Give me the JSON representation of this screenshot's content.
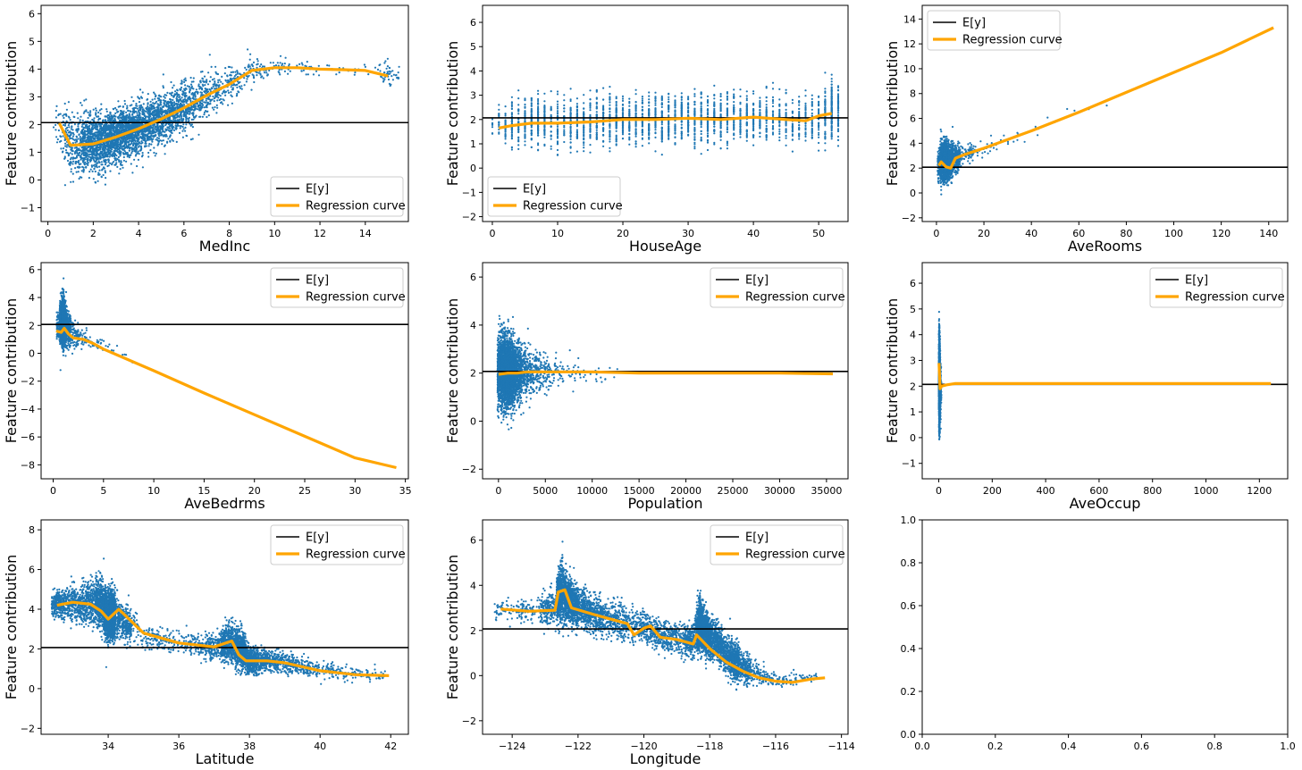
{
  "figure": {
    "colors": {
      "points": "#1f77b4",
      "baseline": "#000000",
      "curve": "#ffa500",
      "frame": "#000000",
      "legend_edge": "#cccccc"
    },
    "ylabel": "Feature contribution",
    "legend": {
      "baseline_label": "E[y]",
      "curve_label": "Regression curve"
    }
  },
  "chart_data": [
    {
      "type": "scatter",
      "feature": "MedInc",
      "xlabel": "MedInc",
      "ylabel": "Feature contribution",
      "xlim": [
        -0.3,
        15.9
      ],
      "ylim": [
        -1.5,
        6.3
      ],
      "xticks": [
        0,
        2,
        4,
        6,
        8,
        10,
        12,
        14
      ],
      "yticks": [
        -1,
        0,
        1,
        2,
        3,
        4,
        5,
        6
      ],
      "baseline": 2.07,
      "legend_position": "lower right",
      "regression_curve": {
        "x": [
          0.5,
          1.0,
          2.0,
          3.0,
          4.0,
          5.0,
          6.0,
          7.0,
          8.0,
          9.0,
          10.0,
          11.0,
          12.0,
          13.0,
          14.0,
          15.0
        ],
        "y": [
          2.05,
          1.25,
          1.3,
          1.55,
          1.85,
          2.2,
          2.6,
          3.05,
          3.45,
          3.95,
          4.05,
          4.05,
          4.0,
          3.98,
          3.95,
          3.75
        ]
      },
      "cloud": {
        "x": [
          0.5,
          1.0,
          2.0,
          3.0,
          4.0,
          5.0,
          6.0,
          7.0,
          8.0,
          9.0,
          10.0,
          11.0,
          12.0,
          13.0,
          14.0,
          15.0
        ],
        "center": [
          2.05,
          1.25,
          1.3,
          1.55,
          1.85,
          2.2,
          2.6,
          3.05,
          3.45,
          3.95,
          4.05,
          4.05,
          4.0,
          3.98,
          3.95,
          3.75
        ],
        "spread": [
          0.9,
          1.0,
          0.9,
          0.85,
          0.8,
          0.8,
          0.8,
          0.7,
          0.55,
          0.45,
          0.35,
          0.3,
          0.25,
          0.2,
          0.25,
          0.5
        ],
        "density": [
          60,
          400,
          1300,
          1500,
          1300,
          1000,
          700,
          380,
          200,
          110,
          60,
          35,
          20,
          15,
          20,
          90
        ]
      }
    },
    {
      "type": "scatter",
      "feature": "HouseAge",
      "xlabel": "HouseAge",
      "ylabel": "Feature contribution",
      "xlim": [
        -1.5,
        54.5
      ],
      "ylim": [
        -2.2,
        6.7
      ],
      "xticks": [
        0,
        10,
        20,
        30,
        40,
        50
      ],
      "yticks": [
        -2,
        -1,
        0,
        1,
        2,
        3,
        4,
        5,
        6
      ],
      "baseline": 2.07,
      "legend_position": "lower left",
      "regression_curve": {
        "x": [
          1,
          3,
          6,
          10,
          15,
          20,
          25,
          30,
          35,
          40,
          45,
          48,
          50,
          52
        ],
        "y": [
          1.65,
          1.75,
          1.85,
          1.85,
          1.9,
          2.0,
          2.0,
          2.05,
          2.0,
          2.1,
          2.0,
          1.95,
          2.15,
          2.25
        ]
      },
      "cloud": {
        "x": [
          1,
          3,
          6,
          10,
          15,
          20,
          25,
          30,
          35,
          40,
          45,
          50,
          52
        ],
        "center": [
          1.8,
          1.8,
          1.9,
          1.9,
          1.9,
          2.0,
          2.0,
          2.05,
          2.0,
          2.1,
          2.0,
          2.1,
          2.3
        ],
        "spread": [
          0.6,
          0.8,
          0.9,
          0.9,
          0.9,
          0.9,
          0.9,
          0.9,
          0.9,
          0.9,
          0.9,
          0.9,
          1.0
        ],
        "density": [
          60,
          200,
          350,
          350,
          450,
          450,
          450,
          450,
          450,
          400,
          300,
          200,
          400
        ]
      }
    },
    {
      "type": "scatter",
      "feature": "AveRooms",
      "xlabel": "AveRooms",
      "ylabel": "Feature contribution",
      "xlim": [
        -6,
        148
      ],
      "ylim": [
        -2.3,
        15.1
      ],
      "xticks": [
        0,
        20,
        40,
        60,
        80,
        100,
        120,
        140
      ],
      "yticks": [
        -2,
        0,
        2,
        4,
        6,
        8,
        10,
        12,
        14
      ],
      "baseline": 2.07,
      "legend_position": "upper left",
      "regression_curve": {
        "x": [
          1,
          2,
          4,
          6,
          8,
          12,
          20,
          30,
          40,
          60,
          80,
          100,
          120,
          142
        ],
        "y": [
          2.2,
          2.5,
          2.1,
          2.0,
          2.8,
          3.1,
          3.6,
          4.3,
          5.0,
          6.5,
          8.1,
          9.7,
          11.3,
          13.3
        ]
      },
      "cloud": {
        "x": [
          1,
          2,
          4,
          6,
          8,
          12,
          20,
          30,
          40,
          60,
          80
        ],
        "center": [
          2.2,
          2.5,
          2.5,
          2.6,
          2.8,
          3.1,
          3.6,
          4.3,
          5.0,
          6.5,
          8.1
        ],
        "spread": [
          1.2,
          1.4,
          1.3,
          1.2,
          1.0,
          0.6,
          0.5,
          0.5,
          0.5,
          0.6,
          0.5
        ],
        "density": [
          150,
          800,
          1400,
          900,
          400,
          120,
          40,
          20,
          10,
          6,
          2
        ]
      }
    },
    {
      "type": "scatter",
      "feature": "AveBedrms",
      "xlabel": "AveBedrms",
      "ylabel": "Feature contribution",
      "xlim": [
        -1.2,
        35.3
      ],
      "ylim": [
        -9.0,
        6.5
      ],
      "xticks": [
        0,
        5,
        10,
        15,
        20,
        25,
        30,
        35
      ],
      "yticks": [
        -8,
        -6,
        -4,
        -2,
        0,
        2,
        4,
        6
      ],
      "baseline": 2.07,
      "legend_position": "upper right",
      "regression_curve": {
        "x": [
          0.3,
          0.8,
          1.1,
          1.5,
          2.0,
          3.0,
          4.0,
          5.0,
          10.0,
          15.0,
          20.0,
          25.0,
          30.0,
          34.1
        ],
        "y": [
          1.6,
          1.5,
          1.8,
          1.4,
          1.1,
          1.0,
          0.7,
          0.3,
          -1.25,
          -2.85,
          -4.4,
          -5.95,
          -7.5,
          -8.2
        ]
      },
      "cloud": {
        "x": [
          0.5,
          0.8,
          1.0,
          1.1,
          1.5,
          2.0,
          3.0,
          4.0,
          5.0,
          6.0,
          8.0
        ],
        "center": [
          2.0,
          2.3,
          2.3,
          2.2,
          1.8,
          1.4,
          1.0,
          0.8,
          0.5,
          0.3,
          -0.2
        ],
        "spread": [
          1.0,
          1.4,
          1.5,
          1.4,
          1.2,
          0.9,
          0.6,
          0.5,
          0.6,
          0.6,
          0.7
        ],
        "density": [
          150,
          900,
          1500,
          800,
          300,
          120,
          60,
          30,
          20,
          10,
          8
        ]
      }
    },
    {
      "type": "scatter",
      "feature": "Population",
      "xlabel": "Population",
      "ylabel": "Feature contribution",
      "xlim": [
        -1700,
        37300
      ],
      "ylim": [
        -2.4,
        6.6
      ],
      "xticks": [
        0,
        5000,
        10000,
        15000,
        20000,
        25000,
        30000,
        35000
      ],
      "yticks": [
        -2,
        0,
        2,
        4,
        6
      ],
      "baseline": 2.07,
      "legend_position": "upper right",
      "regression_curve": {
        "x": [
          3,
          1000,
          2000,
          3000,
          5000,
          7000,
          10000,
          15000,
          20000,
          25000,
          30000,
          35682
        ],
        "y": [
          1.95,
          2.0,
          2.0,
          2.05,
          2.05,
          2.05,
          2.05,
          2.0,
          2.0,
          2.0,
          2.0,
          1.97
        ]
      },
      "cloud": {
        "x": [
          100,
          500,
          1000,
          1500,
          2000,
          3000,
          4000,
          5000,
          6000,
          8000,
          10000,
          12000
        ],
        "center": [
          2.1,
          2.1,
          2.0,
          2.0,
          2.0,
          2.0,
          2.05,
          2.05,
          2.05,
          2.0,
          2.0,
          2.0
        ],
        "spread": [
          1.3,
          1.3,
          1.3,
          1.2,
          1.1,
          0.9,
          0.8,
          0.7,
          0.6,
          0.5,
          0.5,
          0.4
        ],
        "density": [
          800,
          1400,
          1500,
          1200,
          800,
          400,
          200,
          120,
          70,
          40,
          20,
          10
        ]
      }
    },
    {
      "type": "scatter",
      "feature": "AveOccup",
      "xlabel": "AveOccup",
      "ylabel": "Feature contribution",
      "xlim": [
        -62,
        1306
      ],
      "ylim": [
        -1.6,
        6.8
      ],
      "xticks": [
        0,
        200,
        400,
        600,
        800,
        1000,
        1200
      ],
      "yticks": [
        -1,
        0,
        1,
        2,
        3,
        4,
        5,
        6
      ],
      "baseline": 2.07,
      "legend_position": "upper right",
      "regression_curve": {
        "x": [
          1,
          3,
          5,
          10,
          30,
          60,
          100,
          200,
          400,
          600,
          800,
          1000,
          1243
        ],
        "y": [
          2.9,
          2.4,
          1.9,
          2.0,
          2.05,
          2.1,
          2.1,
          2.1,
          2.1,
          2.1,
          2.1,
          2.1,
          2.1
        ]
      },
      "cloud": {
        "x": [
          1,
          2,
          3,
          4,
          5,
          8
        ],
        "center": [
          2.3,
          2.2,
          2.1,
          2.0,
          1.9,
          1.9
        ],
        "spread": [
          1.6,
          1.5,
          1.3,
          1.2,
          1.0,
          0.8
        ],
        "density": [
          600,
          1500,
          1500,
          900,
          400,
          100
        ]
      }
    },
    {
      "type": "scatter",
      "feature": "Latitude",
      "xlabel": "Latitude",
      "ylabel": "Feature contribution",
      "xlim": [
        32.1,
        42.5
      ],
      "ylim": [
        -2.3,
        8.5
      ],
      "xticks": [
        34,
        36,
        38,
        40,
        42
      ],
      "yticks": [
        -2,
        0,
        2,
        4,
        6,
        8
      ],
      "baseline": 2.07,
      "legend_position": "upper right",
      "regression_curve": {
        "x": [
          32.55,
          33.0,
          33.5,
          33.8,
          34.0,
          34.3,
          35.0,
          36.0,
          37.0,
          37.5,
          37.7,
          37.9,
          38.5,
          39.0,
          40.0,
          41.0,
          41.95
        ],
        "y": [
          4.2,
          4.35,
          4.25,
          3.9,
          3.5,
          4.0,
          2.8,
          2.3,
          2.1,
          2.4,
          1.7,
          1.4,
          1.4,
          1.3,
          0.9,
          0.7,
          0.65
        ]
      },
      "cloud": {
        "x": [
          32.6,
          33.0,
          33.5,
          33.8,
          34.0,
          34.1,
          34.3,
          35.0,
          36.0,
          36.5,
          37.0,
          37.4,
          37.8,
          38.0,
          38.5,
          39.0,
          39.5,
          40.0,
          40.8,
          41.5
        ],
        "center": [
          4.2,
          4.3,
          4.3,
          4.3,
          3.6,
          3.8,
          3.5,
          2.7,
          2.3,
          2.2,
          2.1,
          2.4,
          1.9,
          1.4,
          1.4,
          1.3,
          1.1,
          0.9,
          0.7,
          0.7
        ],
        "spread": [
          0.6,
          0.8,
          0.9,
          1.1,
          1.0,
          1.1,
          0.8,
          0.6,
          0.5,
          0.5,
          0.6,
          0.9,
          0.8,
          0.6,
          0.5,
          0.5,
          0.4,
          0.4,
          0.35,
          0.3
        ],
        "density": [
          500,
          500,
          600,
          900,
          1500,
          1600,
          600,
          200,
          150,
          150,
          300,
          800,
          1100,
          700,
          500,
          300,
          200,
          150,
          100,
          70
        ]
      }
    },
    {
      "type": "scatter",
      "feature": "Longitude",
      "xlabel": "Longitude",
      "ylabel": "Feature contribution",
      "xlim": [
        -124.9,
        -113.8
      ],
      "ylim": [
        -2.6,
        6.9
      ],
      "xticks": [
        -124,
        -122,
        -120,
        -118,
        -116,
        -114
      ],
      "yticks": [
        -2,
        0,
        2,
        4,
        6
      ],
      "baseline": 2.07,
      "legend_position": "upper right",
      "regression_curve": {
        "x": [
          -124.35,
          -123.5,
          -122.7,
          -122.6,
          -122.4,
          -122.2,
          -121.5,
          -121.0,
          -120.5,
          -120.3,
          -120.0,
          -119.8,
          -119.5,
          -119.0,
          -118.5,
          -118.4,
          -118.0,
          -117.5,
          -117.0,
          -116.5,
          -116.0,
          -115.5,
          -114.9,
          -114.5
        ],
        "y": [
          2.95,
          2.85,
          2.9,
          3.7,
          3.8,
          3.0,
          2.7,
          2.5,
          2.3,
          1.8,
          2.1,
          2.2,
          1.7,
          1.6,
          1.4,
          1.8,
          1.2,
          0.6,
          0.2,
          -0.1,
          -0.25,
          -0.3,
          -0.15,
          -0.1
        ]
      },
      "cloud": {
        "x": [
          -124.2,
          -123.5,
          -122.8,
          -122.5,
          -122.2,
          -121.8,
          -121.5,
          -121.0,
          -120.5,
          -120.0,
          -119.5,
          -119.0,
          -118.5,
          -118.3,
          -118.1,
          -117.8,
          -117.5,
          -117.2,
          -117.0,
          -116.5,
          -116.0,
          -115.5,
          -115.0
        ],
        "center": [
          2.9,
          2.9,
          3.0,
          3.7,
          3.2,
          2.9,
          2.7,
          2.5,
          2.3,
          2.1,
          1.8,
          1.6,
          1.5,
          2.3,
          1.8,
          1.5,
          0.9,
          0.6,
          0.4,
          0.1,
          -0.2,
          -0.2,
          -0.1
        ],
        "spread": [
          0.4,
          0.4,
          0.7,
          1.2,
          0.8,
          0.7,
          0.7,
          0.7,
          0.7,
          0.7,
          0.6,
          0.6,
          0.6,
          1.0,
          0.8,
          0.7,
          0.7,
          0.8,
          0.6,
          0.4,
          0.3,
          0.3,
          0.3
        ],
        "density": [
          100,
          150,
          400,
          1300,
          1300,
          600,
          500,
          400,
          300,
          300,
          350,
          300,
          500,
          1500,
          1200,
          700,
          600,
          700,
          400,
          150,
          80,
          50,
          40
        ]
      }
    },
    {
      "type": "empty",
      "feature": "",
      "xlabel": "",
      "ylabel": "",
      "xlim": [
        0,
        1
      ],
      "ylim": [
        0,
        1
      ],
      "xticks": [
        0.0,
        0.2,
        0.4,
        0.6,
        0.8,
        1.0
      ],
      "yticks": [
        0.0,
        0.2,
        0.4,
        0.6,
        0.8,
        1.0
      ]
    }
  ]
}
